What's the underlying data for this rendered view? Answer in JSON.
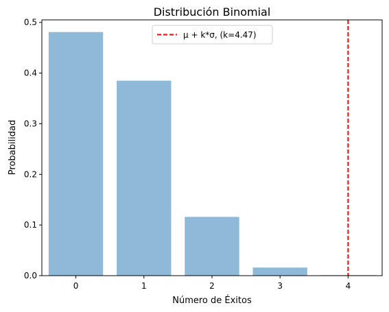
{
  "chart_data": {
    "type": "bar",
    "title": "Distribución Binomial",
    "xlabel": "Número de Éxitos",
    "ylabel": "Probabilidad",
    "categories": [
      "0",
      "1",
      "2",
      "3",
      "4"
    ],
    "x": [
      0,
      1,
      2,
      3,
      4
    ],
    "values": [
      0.481,
      0.385,
      0.116,
      0.016,
      0.001
    ],
    "xlim": [
      -0.5,
      4.5
    ],
    "ylim": [
      0,
      0.505
    ],
    "yticks": [
      "0.0",
      "0.1",
      "0.2",
      "0.3",
      "0.4",
      "0.5"
    ],
    "bar_color": "#8fb9d9",
    "grid": false,
    "vline": {
      "x": 4.0,
      "label": "μ + k*σ, (k=4.47)",
      "color": "#ff0000",
      "style": "dashed"
    },
    "legend_position": "top-center"
  }
}
